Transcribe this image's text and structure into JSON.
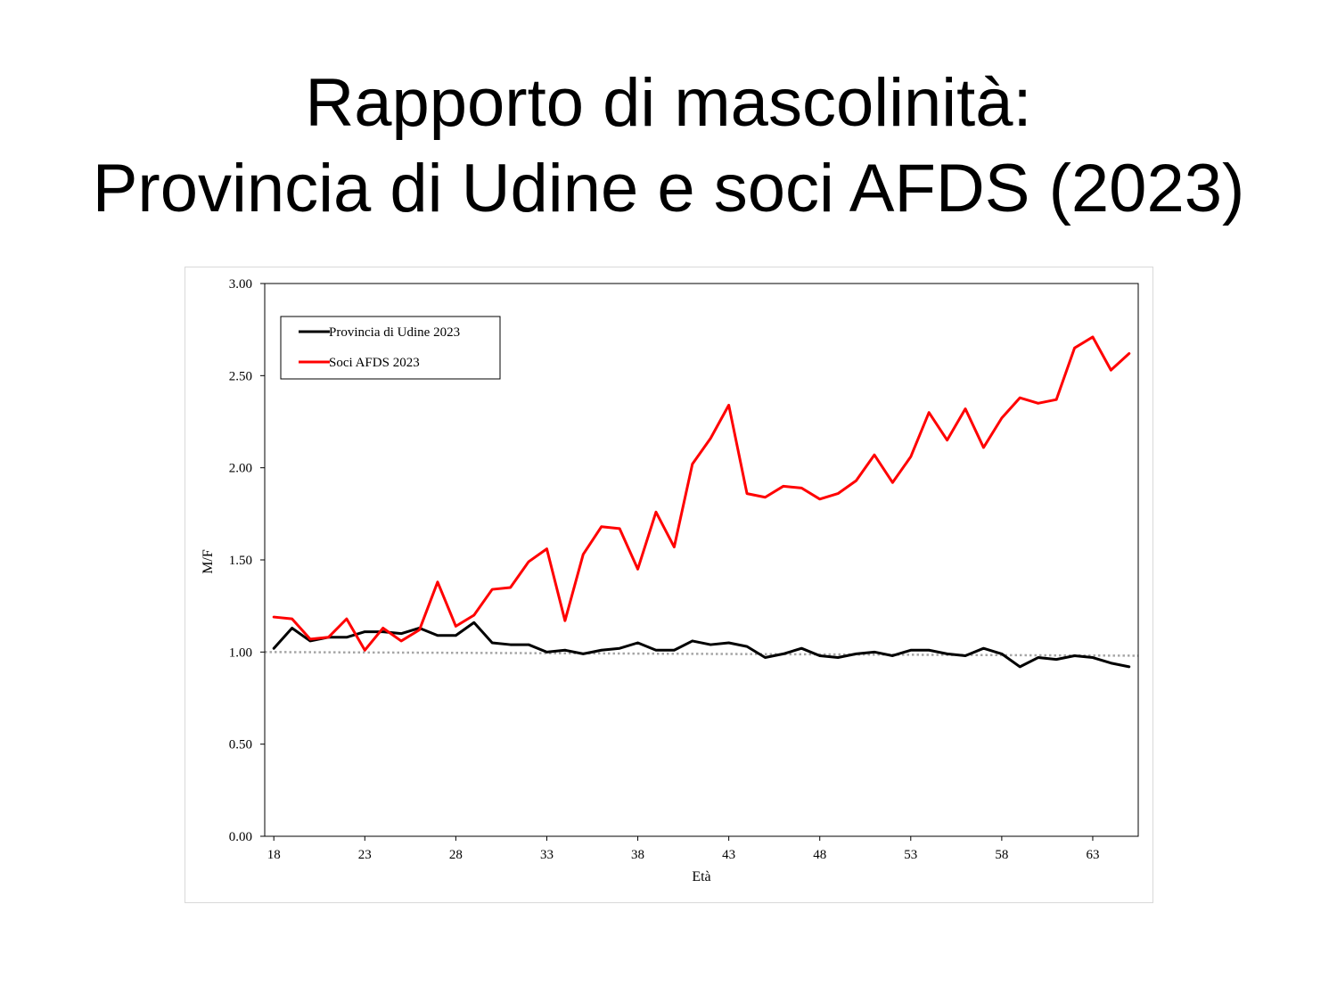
{
  "slide": {
    "title_line1": "Rapporto di mascolinità:",
    "title_line2": "Provincia di Udine e soci AFDS (2023)"
  },
  "chart_data": {
    "type": "line",
    "xlabel": "Età",
    "ylabel": "M/F",
    "xlim": [
      17.5,
      65.5
    ],
    "ylim": [
      0,
      3
    ],
    "xticks": [
      18,
      23,
      28,
      33,
      38,
      43,
      48,
      53,
      58,
      63
    ],
    "yticks": [
      "0.00",
      "0.50",
      "1.00",
      "1.50",
      "2.00",
      "2.50",
      "3.00"
    ],
    "grid": false,
    "legend_position": "top-left",
    "x": [
      18,
      19,
      20,
      21,
      22,
      23,
      24,
      25,
      26,
      27,
      28,
      29,
      30,
      31,
      32,
      33,
      34,
      35,
      36,
      37,
      38,
      39,
      40,
      41,
      42,
      43,
      44,
      45,
      46,
      47,
      48,
      49,
      50,
      51,
      52,
      53,
      54,
      55,
      56,
      57,
      58,
      59,
      60,
      61,
      62,
      63,
      64,
      65
    ],
    "series": [
      {
        "name": "Provincia di Udine 2023",
        "color": "#000000",
        "values": [
          1.02,
          1.13,
          1.06,
          1.08,
          1.08,
          1.11,
          1.11,
          1.1,
          1.13,
          1.09,
          1.09,
          1.16,
          1.05,
          1.04,
          1.04,
          1.0,
          1.01,
          0.99,
          1.01,
          1.02,
          1.05,
          1.01,
          1.01,
          1.06,
          1.04,
          1.05,
          1.03,
          0.97,
          0.99,
          1.02,
          0.98,
          0.97,
          0.99,
          1.0,
          0.98,
          1.01,
          1.01,
          0.99,
          0.98,
          1.02,
          0.99,
          0.92,
          0.97,
          0.96,
          0.98,
          0.97,
          0.94,
          0.92
        ]
      },
      {
        "name": "Soci AFDS 2023",
        "color": "#ff0000",
        "values": [
          1.19,
          1.18,
          1.07,
          1.08,
          1.18,
          1.01,
          1.13,
          1.06,
          1.12,
          1.38,
          1.14,
          1.2,
          1.34,
          1.35,
          1.49,
          1.56,
          1.17,
          1.53,
          1.68,
          1.67,
          1.45,
          1.76,
          1.57,
          2.02,
          2.16,
          2.34,
          1.86,
          1.84,
          1.9,
          1.89,
          1.83,
          1.86,
          1.93,
          2.07,
          1.92,
          2.06,
          2.3,
          2.15,
          2.32,
          2.11,
          2.27,
          2.38,
          2.35,
          2.37,
          2.65,
          2.71,
          2.53,
          2.62
        ]
      }
    ],
    "reference_line": {
      "style": "dotted",
      "color": "#a6a6a6",
      "y_start": 1.0,
      "y_end": 0.98
    }
  }
}
